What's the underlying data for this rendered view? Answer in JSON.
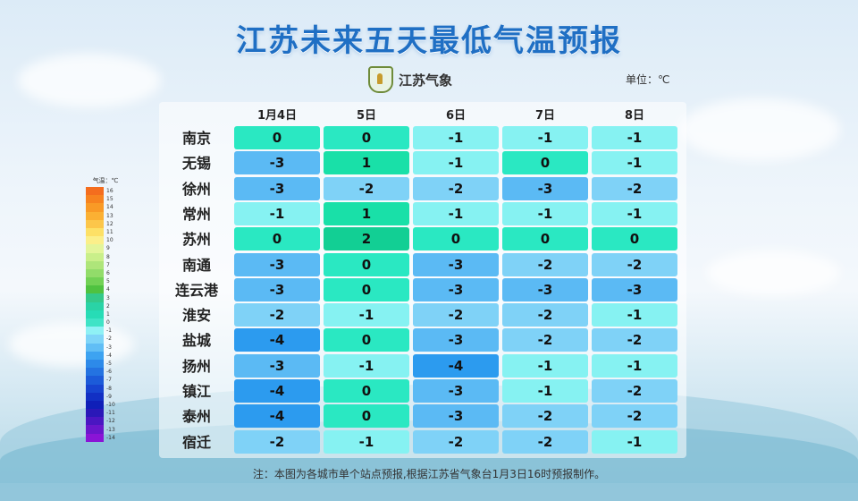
{
  "title": "江苏未来五天最低气温预报",
  "logo_text": "江苏气象",
  "unit": "单位：℃",
  "columns": [
    "1月4日",
    "5日",
    "6日",
    "7日",
    "8日"
  ],
  "cities": [
    "南京",
    "无锡",
    "徐州",
    "常州",
    "苏州",
    "南通",
    "连云港",
    "淮安",
    "盐城",
    "扬州",
    "镇江",
    "泰州",
    "宿迁"
  ],
  "values": [
    [
      "0",
      "0",
      "-1",
      "-1",
      "-1"
    ],
    [
      "-3",
      "1",
      "-1",
      "0",
      "-1"
    ],
    [
      "-3",
      "-2",
      "-2",
      "-3",
      "-2"
    ],
    [
      "-1",
      "1",
      "-1",
      "-1",
      "-1"
    ],
    [
      "0",
      "2",
      "0",
      "0",
      "0"
    ],
    [
      "-3",
      "0",
      "-3",
      "-2",
      "-2"
    ],
    [
      "-3",
      "0",
      "-3",
      "-3",
      "-3"
    ],
    [
      "-2",
      "-1",
      "-2",
      "-2",
      "-1"
    ],
    [
      "-4",
      "0",
      "-3",
      "-2",
      "-2"
    ],
    [
      "-3",
      "-1",
      "-4",
      "-1",
      "-1"
    ],
    [
      "-4",
      "0",
      "-3",
      "-1",
      "-2"
    ],
    [
      "-4",
      "0",
      "-3",
      "-2",
      "-2"
    ],
    [
      "-2",
      "-1",
      "-2",
      "-2",
      "-1"
    ]
  ],
  "legend": {
    "title": "气温：℃",
    "labels": [
      "16",
      "15",
      "14",
      "13",
      "12",
      "11",
      "10",
      "9",
      "8",
      "7",
      "6",
      "5",
      "4",
      "3",
      "2",
      "1",
      "0",
      "-1",
      "-2",
      "-3",
      "-4",
      "-5",
      "-6",
      "-7",
      "-8",
      "-9",
      "-10",
      "-11",
      "-12",
      "-13",
      "-14"
    ],
    "colors": [
      "#f46d1e",
      "#f7831f",
      "#f99a26",
      "#fbb033",
      "#fcc64a",
      "#fde066",
      "#fbef8a",
      "#e3f59a",
      "#c9ef8a",
      "#aee57a",
      "#92dc6a",
      "#72d155",
      "#4fc240",
      "#34c98a",
      "#2ad3a6",
      "#27dcb6",
      "#3fe3c6",
      "#8ff1f5",
      "#7fd5f8",
      "#61bef5",
      "#3da3f1",
      "#2d8ae9",
      "#2473e1",
      "#1c5bd9",
      "#1744d0",
      "#1230c4",
      "#0f1fb8",
      "#2a18b8",
      "#4a16c2",
      "#6a16cc",
      "#8a14d6"
    ]
  },
  "value_colors": {
    "2": "#12cf94",
    "1": "#19e0a8",
    "0": "#2ae8c2",
    "-1": "#86f2f2",
    "-2": "#7fd2f7",
    "-3": "#5bbaf4",
    "-4": "#2c9bef"
  },
  "note": "注：本图为各城市单个站点预报,根据江苏省气象台1月3日16时预报制作。"
}
